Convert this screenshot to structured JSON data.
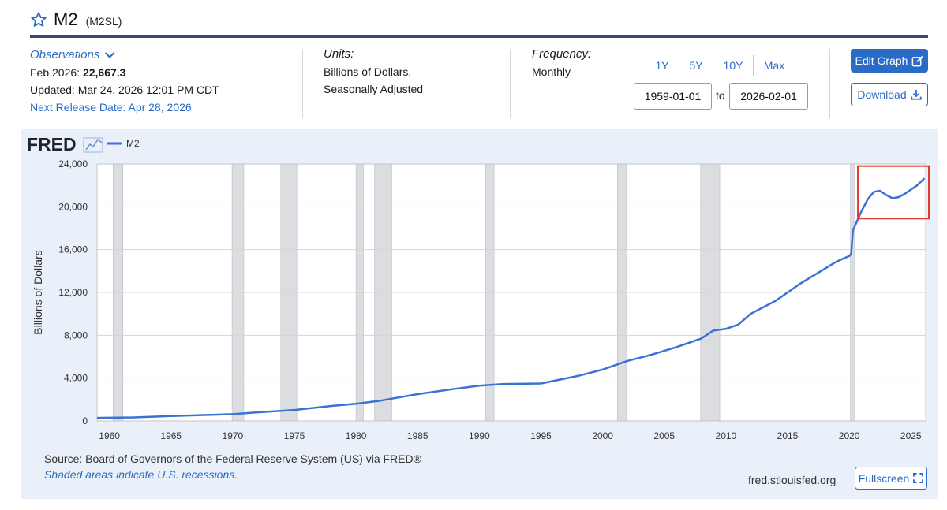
{
  "header": {
    "title": "M2",
    "series_id": "(M2SL)",
    "star_icon": "star-outline-icon"
  },
  "observations": {
    "label": "Observations",
    "latest_period": "Feb 2026:",
    "latest_value": "22,667.3",
    "updated": "Updated: Mar 24, 2026 12:01 PM CDT",
    "next_release": "Next Release Date: Apr 28, 2026"
  },
  "units": {
    "label": "Units:",
    "line1": "Billions of Dollars,",
    "line2": "Seasonally Adjusted"
  },
  "frequency": {
    "label": "Frequency:",
    "value": "Monthly"
  },
  "range": {
    "buttons": [
      "1Y",
      "5Y",
      "10Y",
      "Max"
    ],
    "start": "1959-01-01",
    "to_label": "to",
    "end": "2026-02-01"
  },
  "actions": {
    "edit_graph": "Edit Graph",
    "download": "Download",
    "fullscreen": "Fullscreen"
  },
  "colors": {
    "accent": "#2a6cc5",
    "series_line": "#3a73d3",
    "recession": "#dcdde0",
    "highlight": "#e03a2f",
    "panel": "#eaf0f9"
  },
  "footer": {
    "source": "Source: Board of Governors of the Federal Reserve System (US) via FRED®",
    "shading_note": "Shaded areas indicate U.S. recessions.",
    "site": "fred.stlouisfed.org"
  },
  "chart_data": {
    "type": "line",
    "brand": "FRED",
    "legend": [
      "M2"
    ],
    "ylabel": "Billions of Dollars",
    "xlim": [
      1959.0,
      2026.2
    ],
    "ylim": [
      0,
      24000
    ],
    "yticks": [
      0,
      4000,
      8000,
      12000,
      16000,
      20000,
      24000
    ],
    "ytick_labels": [
      "0",
      "4,000",
      "8,000",
      "12,000",
      "16,000",
      "20,000",
      "24,000"
    ],
    "xticks": [
      1960,
      1965,
      1970,
      1975,
      1980,
      1985,
      1990,
      1995,
      2000,
      2005,
      2010,
      2015,
      2020,
      2025
    ],
    "xtick_labels": [
      "1960",
      "1965",
      "1970",
      "1975",
      "1980",
      "1985",
      "1990",
      "1995",
      "2000",
      "2005",
      "2010",
      "2015",
      "2020",
      "2025"
    ],
    "recessions": [
      [
        1960.3,
        1961.1
      ],
      [
        1969.95,
        1970.9
      ],
      [
        1973.9,
        1975.2
      ],
      [
        1980.0,
        1980.6
      ],
      [
        1981.5,
        1982.9
      ],
      [
        1990.5,
        1991.2
      ],
      [
        2001.2,
        2001.9
      ],
      [
        2007.95,
        2009.5
      ],
      [
        2020.1,
        2020.4
      ]
    ],
    "highlight_box": {
      "x": [
        2020.7,
        2026.2
      ],
      "y": [
        18900,
        23800
      ]
    },
    "series": [
      {
        "name": "M2",
        "x": [
          1959.0,
          1960,
          1962,
          1965,
          1968,
          1970,
          1972,
          1975,
          1978,
          1980,
          1982,
          1985,
          1988,
          1990,
          1992,
          1995,
          1998,
          2000,
          2002,
          2004,
          2006,
          2008,
          2009,
          2010,
          2011,
          2012,
          2014,
          2016,
          2018,
          2019,
          2020.0,
          2020.15,
          2020.3,
          2020.5,
          2021.0,
          2021.5,
          2022.0,
          2022.5,
          2023.0,
          2023.5,
          2024.0,
          2024.5,
          2025.0,
          2025.5,
          2026.1
        ],
        "y": [
          290,
          305,
          330,
          460,
          560,
          630,
          800,
          1020,
          1400,
          1600,
          1900,
          2500,
          3000,
          3300,
          3450,
          3500,
          4200,
          4800,
          5600,
          6200,
          6900,
          7700,
          8450,
          8600,
          9000,
          10000,
          11200,
          12800,
          14200,
          14900,
          15400,
          15600,
          17800,
          18300,
          19600,
          20700,
          21400,
          21500,
          21100,
          20800,
          20900,
          21200,
          21600,
          22000,
          22667.3
        ]
      }
    ]
  }
}
